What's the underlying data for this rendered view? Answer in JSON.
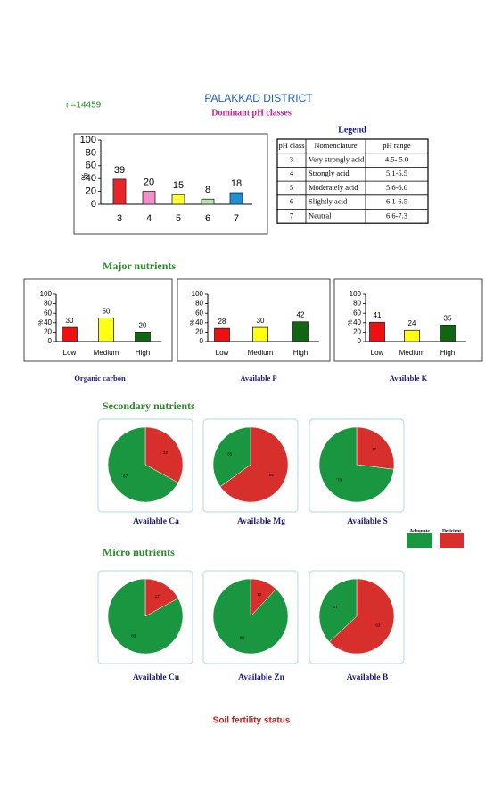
{
  "header": {
    "title": "PALAKKAD DISTRICT",
    "sample": "n=14459",
    "subtitle": "Dominant pH classes"
  },
  "ph_legend": {
    "title": "Legend",
    "columns": [
      "pH class",
      "Nomenclature",
      "pH range"
    ],
    "rows": [
      [
        "3",
        "Very strongly acid",
        "4.5- 5.0"
      ],
      [
        "4",
        "Strongly acid",
        "5.1-5.5"
      ],
      [
        "5",
        "Moderately acid",
        "5.6-6.0"
      ],
      [
        "6",
        "Slightly acid",
        "6.1-6.5"
      ],
      [
        "7",
        "Neutral",
        "6.6-7.3"
      ]
    ]
  },
  "sections": [
    "Major nutrients",
    "Secondary nutrients",
    "Micro nutrients"
  ],
  "pie_legend": [
    {
      "name": "Adequate",
      "color": "#1a9641"
    },
    {
      "name": "Deficient",
      "color": "#d7302c"
    }
  ],
  "footer": "Soil fertility status",
  "chart_data": [
    {
      "type": "bar",
      "y_label": "%",
      "categories": [
        "3",
        "4",
        "5",
        "6",
        "7"
      ],
      "values": [
        39,
        20,
        15,
        8,
        18
      ],
      "colors": [
        "#e8262a",
        "#f08fc8",
        "#ffff33",
        "#b9e3b0",
        "#1f8fd8"
      ],
      "ylim": [
        0,
        100
      ],
      "yticks": [
        0,
        20,
        40,
        60,
        80,
        100
      ]
    },
    {
      "type": "bar",
      "title": "Organic carbon",
      "y_label": "%",
      "categories": [
        "Low",
        "Medium",
        "High"
      ],
      "values": [
        30,
        50,
        20
      ],
      "colors": [
        "#ee1111",
        "#ffff11",
        "#116611"
      ],
      "ylim": [
        0,
        100
      ],
      "yticks": [
        0,
        20,
        40,
        60,
        80,
        100
      ]
    },
    {
      "type": "bar",
      "title": "Available  P",
      "y_label": "%",
      "categories": [
        "Low",
        "Medium",
        "High"
      ],
      "values": [
        28,
        30,
        42
      ],
      "colors": [
        "#ee1111",
        "#ffff11",
        "#116611"
      ],
      "ylim": [
        0,
        100
      ],
      "yticks": [
        0,
        20,
        40,
        60,
        80,
        100
      ]
    },
    {
      "type": "bar",
      "title": "Available  K",
      "y_label": "%",
      "categories": [
        "Low",
        "Medium",
        "High"
      ],
      "values": [
        41,
        24,
        35
      ],
      "colors": [
        "#ee1111",
        "#ffff11",
        "#116611"
      ],
      "ylim": [
        0,
        100
      ],
      "yticks": [
        0,
        20,
        40,
        60,
        80,
        100
      ]
    },
    {
      "type": "pie",
      "title": "Available  Ca",
      "values": [
        67,
        33
      ]
    },
    {
      "type": "pie",
      "title": "Available  Mg",
      "values": [
        35,
        65
      ]
    },
    {
      "type": "pie",
      "title": "Available  S",
      "values": [
        73,
        27
      ]
    },
    {
      "type": "pie",
      "title": "Available Cu",
      "values": [
        83,
        17
      ]
    },
    {
      "type": "pie",
      "title": "Available  Zn",
      "values": [
        88,
        12
      ]
    },
    {
      "type": "pie",
      "title": "Available  B",
      "values": [
        37,
        63
      ]
    }
  ]
}
